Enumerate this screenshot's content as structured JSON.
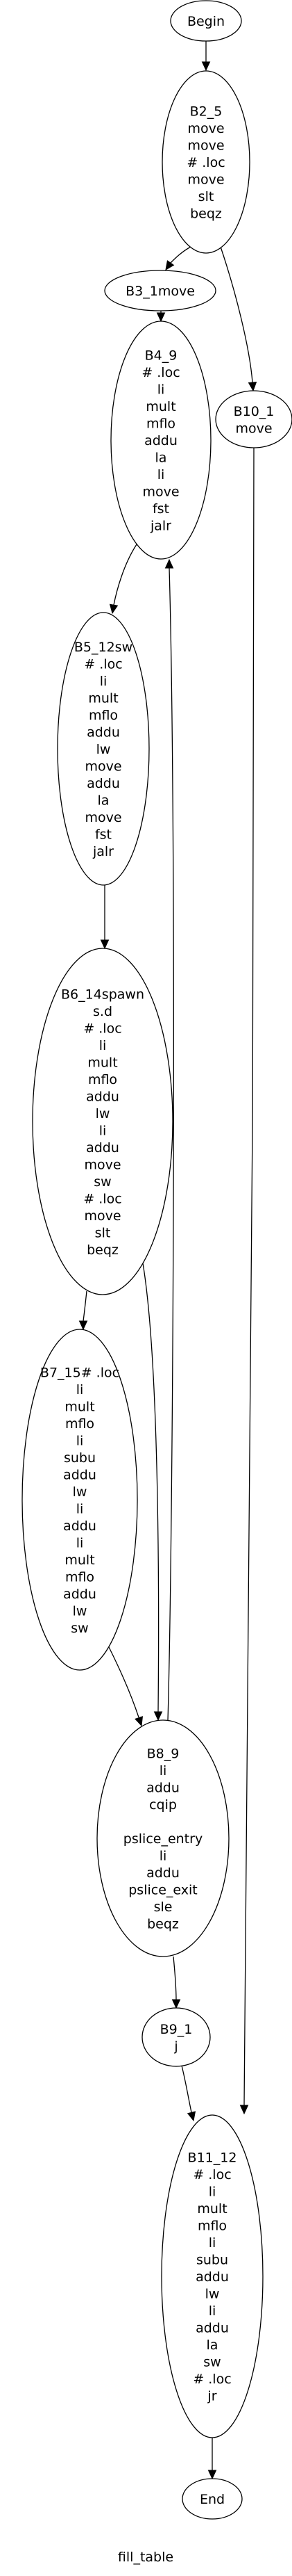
{
  "title": "fill_table",
  "nodes": [
    {
      "id": "begin",
      "lines": [
        "Begin"
      ]
    },
    {
      "id": "b2_5",
      "lines": [
        "B2_5",
        "move",
        "move",
        "# .loc",
        "move",
        "slt",
        "beqz"
      ]
    },
    {
      "id": "b3_1",
      "lines": [
        "B3_1move"
      ]
    },
    {
      "id": "b4_9",
      "lines": [
        "B4_9",
        "# .loc",
        "li",
        "mult",
        "mflo",
        "addu",
        "la",
        "li",
        "move",
        "fst",
        "jalr"
      ]
    },
    {
      "id": "b10_1",
      "lines": [
        "B10_1",
        "move"
      ]
    },
    {
      "id": "b5_12",
      "lines": [
        "B5_12sw",
        "# .loc",
        "li",
        "mult",
        "mflo",
        "addu",
        "lw",
        "move",
        "addu",
        "la",
        "move",
        "fst",
        "jalr"
      ]
    },
    {
      "id": "b6_14",
      "lines": [
        "B6_14spawn",
        "s.d",
        "# .loc",
        "li",
        "mult",
        "mflo",
        "addu",
        "lw",
        "li",
        "addu",
        "move",
        "sw",
        "# .loc",
        "move",
        "slt",
        "beqz"
      ]
    },
    {
      "id": "b7_15",
      "lines": [
        "B7_15# .loc",
        "li",
        "mult",
        "mflo",
        "li",
        "subu",
        "addu",
        "lw",
        "li",
        "addu",
        "li",
        "mult",
        "mflo",
        "addu",
        "lw",
        "sw"
      ]
    },
    {
      "id": "b8_9",
      "lines": [
        "B8_9",
        "li",
        "addu",
        "cqip",
        "",
        "pslice_entry",
        "li",
        "addu",
        "pslice_exit",
        "sle",
        "beqz"
      ]
    },
    {
      "id": "b9_1",
      "lines": [
        "B9_1",
        "j"
      ]
    },
    {
      "id": "b11_12",
      "lines": [
        "B11_12",
        "# .loc",
        "li",
        "mult",
        "mflo",
        "li",
        "subu",
        "addu",
        "lw",
        "li",
        "addu",
        "la",
        "sw",
        "# .loc",
        "jr"
      ]
    },
    {
      "id": "end",
      "lines": [
        "End"
      ]
    }
  ],
  "edges": [
    {
      "from": "begin",
      "to": "b2_5"
    },
    {
      "from": "b2_5",
      "to": "b3_1"
    },
    {
      "from": "b2_5",
      "to": "b10_1"
    },
    {
      "from": "b3_1",
      "to": "b4_9"
    },
    {
      "from": "b4_9",
      "to": "b5_12"
    },
    {
      "from": "b5_12",
      "to": "b6_14"
    },
    {
      "from": "b6_14",
      "to": "b7_15"
    },
    {
      "from": "b6_14",
      "to": "b8_9"
    },
    {
      "from": "b7_15",
      "to": "b8_9"
    },
    {
      "from": "b8_9",
      "to": "b4_9"
    },
    {
      "from": "b8_9",
      "to": "b9_1"
    },
    {
      "from": "b9_1",
      "to": "b11_12"
    },
    {
      "from": "b10_1",
      "to": "b11_12"
    },
    {
      "from": "b11_12",
      "to": "end"
    }
  ]
}
